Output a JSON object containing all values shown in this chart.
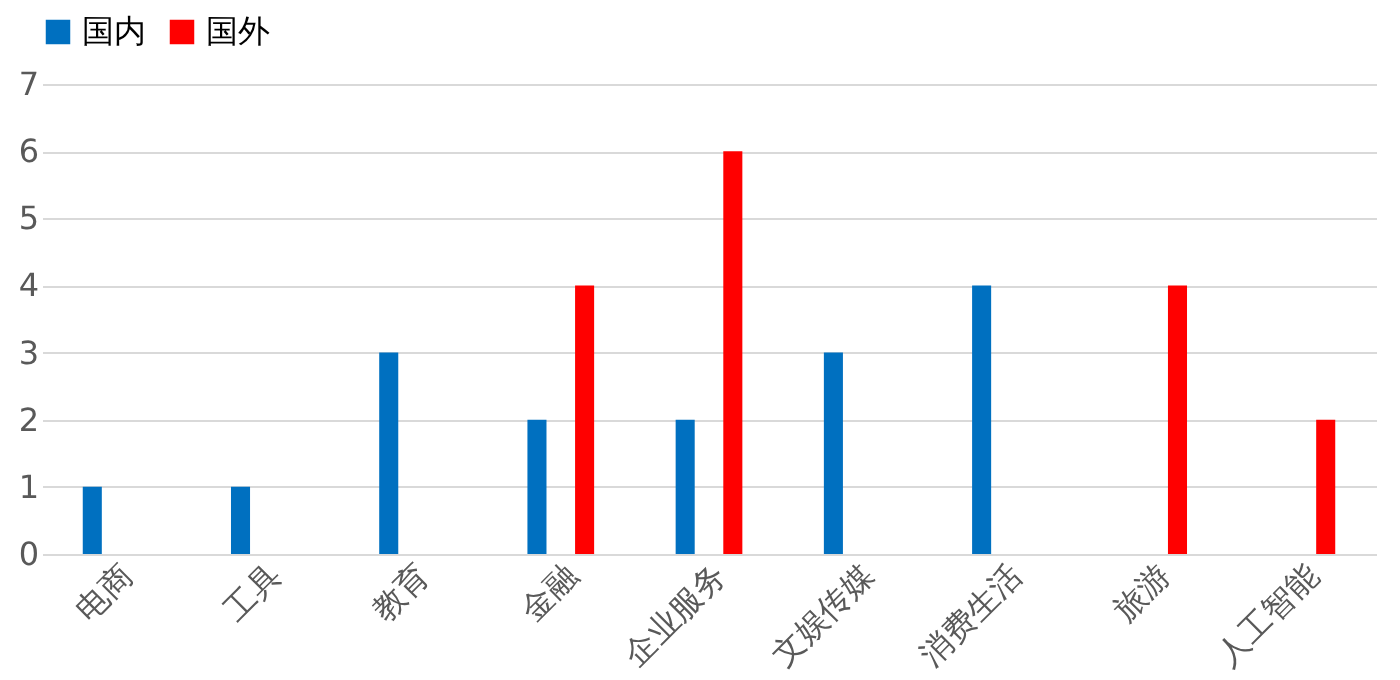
{
  "chart_data": {
    "type": "bar",
    "categories": [
      "电商",
      "工具",
      "教育",
      "金融",
      "企业服务",
      "文娱传媒",
      "消费生活",
      "旅游",
      "人工智能"
    ],
    "series": [
      {
        "name": "国内",
        "color": "#0070c0",
        "values": [
          1,
          1,
          3,
          2,
          2,
          3,
          4,
          null,
          null
        ]
      },
      {
        "name": "国外",
        "color": "#ff0000",
        "values": [
          null,
          null,
          null,
          4,
          6,
          null,
          null,
          4,
          2
        ]
      }
    ],
    "ylim": [
      0,
      7
    ],
    "yticks": [
      0,
      1,
      2,
      3,
      4,
      5,
      6,
      7
    ],
    "grid": "y",
    "legend": "top"
  }
}
